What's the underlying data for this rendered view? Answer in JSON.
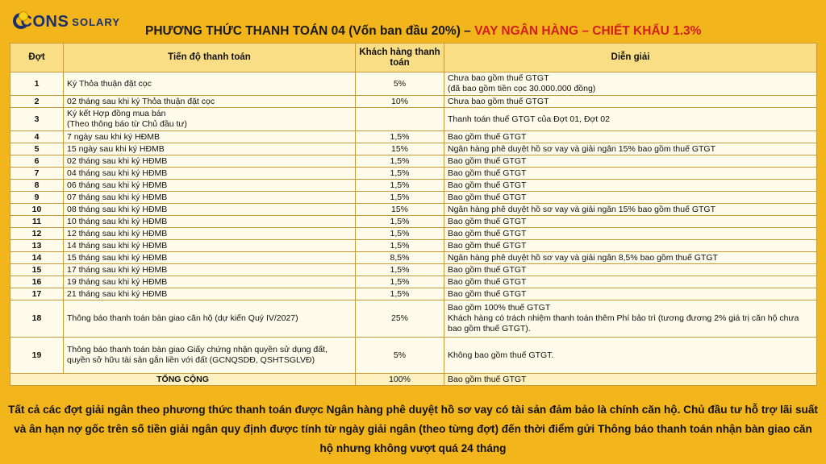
{
  "logo": {
    "brand_main": "CONS",
    "brand_sub": "SOLARY"
  },
  "title": {
    "main": "PHƯƠNG THỨC THANH TOÁN 04 (Vốn ban đầu 20%) – ",
    "highlight": "VAY NGÂN HÀNG – CHIẾT KHẤU 1.3%"
  },
  "table": {
    "headers": [
      "Đợt",
      "Tiến độ thanh toán",
      "Khách hàng thanh toán",
      "Diễn giải"
    ],
    "rows": [
      {
        "dot": "1",
        "tien_do": "Ký Thỏa thuận đặt cọc",
        "kh_tt": "5%",
        "dien_giai": "Chưa bao gồm thuế GTGT\n(đã bao gồm tiền cọc 30.000.000 đồng)"
      },
      {
        "dot": "2",
        "tien_do": "02 tháng sau khi ký Thỏa thuận đặt cọc",
        "kh_tt": "10%",
        "dien_giai": "Chưa bao gồm thuế GTGT"
      },
      {
        "dot": "3",
        "tien_do": "Ký kết Hợp đồng mua bán\n(Theo thông báo từ Chủ đầu tư)",
        "kh_tt": "",
        "dien_giai": "Thanh toán thuế GTGT của Đợt 01, Đợt 02"
      },
      {
        "dot": "4",
        "tien_do": "7 ngày sau khi ký HĐMB",
        "kh_tt": "1,5%",
        "dien_giai": "Bao gồm thuế GTGT"
      },
      {
        "dot": "5",
        "tien_do": "15 ngày sau khi ký HĐMB",
        "kh_tt": "15%",
        "dien_giai": "Ngân hàng phê duyệt hồ sơ vay và giải ngân 15% bao gồm thuế GTGT"
      },
      {
        "dot": "6",
        "tien_do": "02 tháng sau khi ký HĐMB",
        "kh_tt": "1,5%",
        "dien_giai": "Bao gồm thuế GTGT"
      },
      {
        "dot": "7",
        "tien_do": "04 tháng sau khi ký HĐMB",
        "kh_tt": "1,5%",
        "dien_giai": "Bao gồm thuế GTGT"
      },
      {
        "dot": "8",
        "tien_do": "06 tháng sau khi ký HĐMB",
        "kh_tt": "1,5%",
        "dien_giai": "Bao gồm thuế GTGT"
      },
      {
        "dot": "9",
        "tien_do": "07 tháng sau khi ký HĐMB",
        "kh_tt": "1,5%",
        "dien_giai": "Bao gồm thuế GTGT"
      },
      {
        "dot": "10",
        "tien_do": "08 tháng sau khi ký HĐMB",
        "kh_tt": "15%",
        "dien_giai": "Ngân hàng phê duyệt hồ sơ vay và giải ngân 15% bao gồm thuế GTGT"
      },
      {
        "dot": "11",
        "tien_do": "10 tháng sau khi ký HĐMB",
        "kh_tt": "1,5%",
        "dien_giai": "Bao gồm thuế GTGT"
      },
      {
        "dot": "12",
        "tien_do": "12 tháng sau khi ký HĐMB",
        "kh_tt": "1,5%",
        "dien_giai": "Bao gồm thuế GTGT"
      },
      {
        "dot": "13",
        "tien_do": "14 tháng sau khi ký HĐMB",
        "kh_tt": "1,5%",
        "dien_giai": "Bao gồm thuế GTGT"
      },
      {
        "dot": "14",
        "tien_do": "15 tháng sau khi ký HĐMB",
        "kh_tt": "8,5%",
        "dien_giai": "Ngân hàng phê duyệt hồ sơ vay và giải ngân 8,5% bao gồm thuế GTGT"
      },
      {
        "dot": "15",
        "tien_do": "17 tháng sau khi ký HĐMB",
        "kh_tt": "1,5%",
        "dien_giai": "Bao gồm thuế GTGT"
      },
      {
        "dot": "16",
        "tien_do": "19 tháng sau khi ký HĐMB",
        "kh_tt": "1,5%",
        "dien_giai": "Bao gồm thuế GTGT"
      },
      {
        "dot": "17",
        "tien_do": "21 tháng sau khi ký HĐMB",
        "kh_tt": "1,5%",
        "dien_giai": "Bao gồm thuế GTGT"
      },
      {
        "dot": "18",
        "tien_do": "Thông báo thanh toán bàn giao căn hộ (dự kiến Quý IV/2027)",
        "kh_tt": "25%",
        "dien_giai": "Bao gồm 100% thuế GTGT\nKhách hàng có trách nhiệm thanh toán thêm Phí bảo trì (tương đương 2% giá trị căn hộ chưa bao gồm thuế GTGT)."
      },
      {
        "dot": "19",
        "tien_do": "Thông báo thanh toán bàn giao Giấy chứng nhận quyền sử dụng đất, quyền sở hữu tài sản gắn liền với đất (GCNQSDĐ, QSHTSGLVĐ)",
        "kh_tt": "5%",
        "dien_giai": "Không bao gồm thuế GTGT."
      }
    ],
    "total": {
      "label": "TỔNG CỘNG",
      "kh_tt": "100%",
      "dien_giai": "Bao gồm thuế GTGT"
    }
  },
  "note": "Tất cả các đợt giải ngân theo phương thức thanh toán được Ngân hàng phê duyệt hồ sơ vay có tài sản đảm bảo là chính căn hộ. Chủ đầu tư hỗ trợ lãi suất và ân hạn nợ gốc trên số tiền giải ngân quy định được tính từ ngày giải ngân (theo từng đợt) đến thời điểm gửi Thông báo thanh toán nhận bàn giao căn hộ nhưng không vượt quá 24 tháng"
}
